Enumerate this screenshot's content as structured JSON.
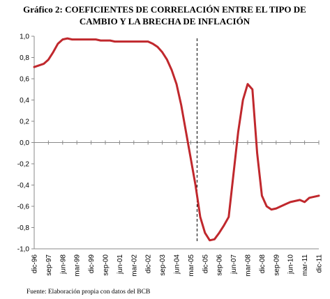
{
  "chart_data": {
    "type": "line",
    "title_line1": "Gráfico 2: COEFICIENTES DE CORRELACIÓN ENTRE EL TIPO DE",
    "title_line2": "CAMBIO Y LA BRECHA DE INFLACIÓN",
    "source": "Fuente: Elaboración propia con datos del BCB",
    "xlabel": "",
    "ylabel": "",
    "ylim": [
      -1.0,
      1.0
    ],
    "y_ticks": [
      "1,0",
      "0,8",
      "0,6",
      "0,4",
      "0,2",
      "0,0",
      "-0,2",
      "-0,4",
      "-0,6",
      "-0,8",
      "-1,0"
    ],
    "y_tick_values": [
      1.0,
      0.8,
      0.6,
      0.4,
      0.2,
      0.0,
      -0.2,
      -0.4,
      -0.6,
      -0.8,
      -1.0
    ],
    "x_ticks": [
      "dic-96",
      "sep-97",
      "jun-98",
      "mar-99",
      "dic-99",
      "sep-00",
      "jun-01",
      "mar-02",
      "dic-02",
      "sep-03",
      "jun-04",
      "mar-05",
      "dic-05",
      "sep-06",
      "jun-07",
      "mar-08",
      "dic-08",
      "sep-09",
      "jun-10",
      "mar-11",
      "dic-11"
    ],
    "x_range": [
      "dic-96",
      "dic-11"
    ],
    "vline": {
      "x": "jul-05",
      "style": "dashed",
      "color": "#000000"
    },
    "grid": false,
    "line_color": "#c0282d",
    "series": [
      {
        "x": [
          "dic-96",
          "jun-97",
          "sep-97",
          "dic-97",
          "mar-98",
          "jun-98",
          "sep-98",
          "dic-98",
          "mar-99",
          "jun-99",
          "sep-99",
          "dic-99",
          "mar-00",
          "jun-00",
          "sep-00",
          "dic-00",
          "mar-01",
          "jun-01",
          "sep-01",
          "dic-01",
          "mar-02",
          "jun-02",
          "sep-02",
          "dic-02",
          "mar-03",
          "jun-03",
          "sep-03",
          "dic-03",
          "mar-04",
          "jun-04",
          "sep-04",
          "dic-04",
          "mar-05",
          "jun-05",
          "sep-05",
          "dic-05",
          "mar-06",
          "jun-06",
          "sep-06",
          "dic-06",
          "mar-07",
          "jun-07",
          "sep-07",
          "dic-07",
          "mar-08",
          "jun-08",
          "sep-08",
          "dic-08",
          "mar-09",
          "jun-09",
          "sep-09",
          "dic-09",
          "mar-10",
          "jun-10",
          "sep-10",
          "dic-10",
          "mar-11",
          "jun-11",
          "sep-11",
          "dic-11"
        ],
        "values": [
          0.71,
          0.74,
          0.78,
          0.85,
          0.93,
          0.97,
          0.98,
          0.97,
          0.97,
          0.97,
          0.97,
          0.97,
          0.97,
          0.96,
          0.96,
          0.96,
          0.95,
          0.95,
          0.95,
          0.95,
          0.95,
          0.95,
          0.95,
          0.95,
          0.93,
          0.9,
          0.85,
          0.78,
          0.68,
          0.55,
          0.35,
          0.1,
          -0.15,
          -0.4,
          -0.7,
          -0.85,
          -0.92,
          -0.91,
          -0.85,
          -0.78,
          -0.7,
          -0.3,
          0.1,
          0.4,
          0.55,
          0.5,
          -0.1,
          -0.5,
          -0.6,
          -0.63,
          -0.62,
          -0.6,
          -0.58,
          -0.56,
          -0.55,
          -0.54,
          -0.56,
          -0.52,
          -0.51,
          -0.5
        ]
      }
    ]
  }
}
